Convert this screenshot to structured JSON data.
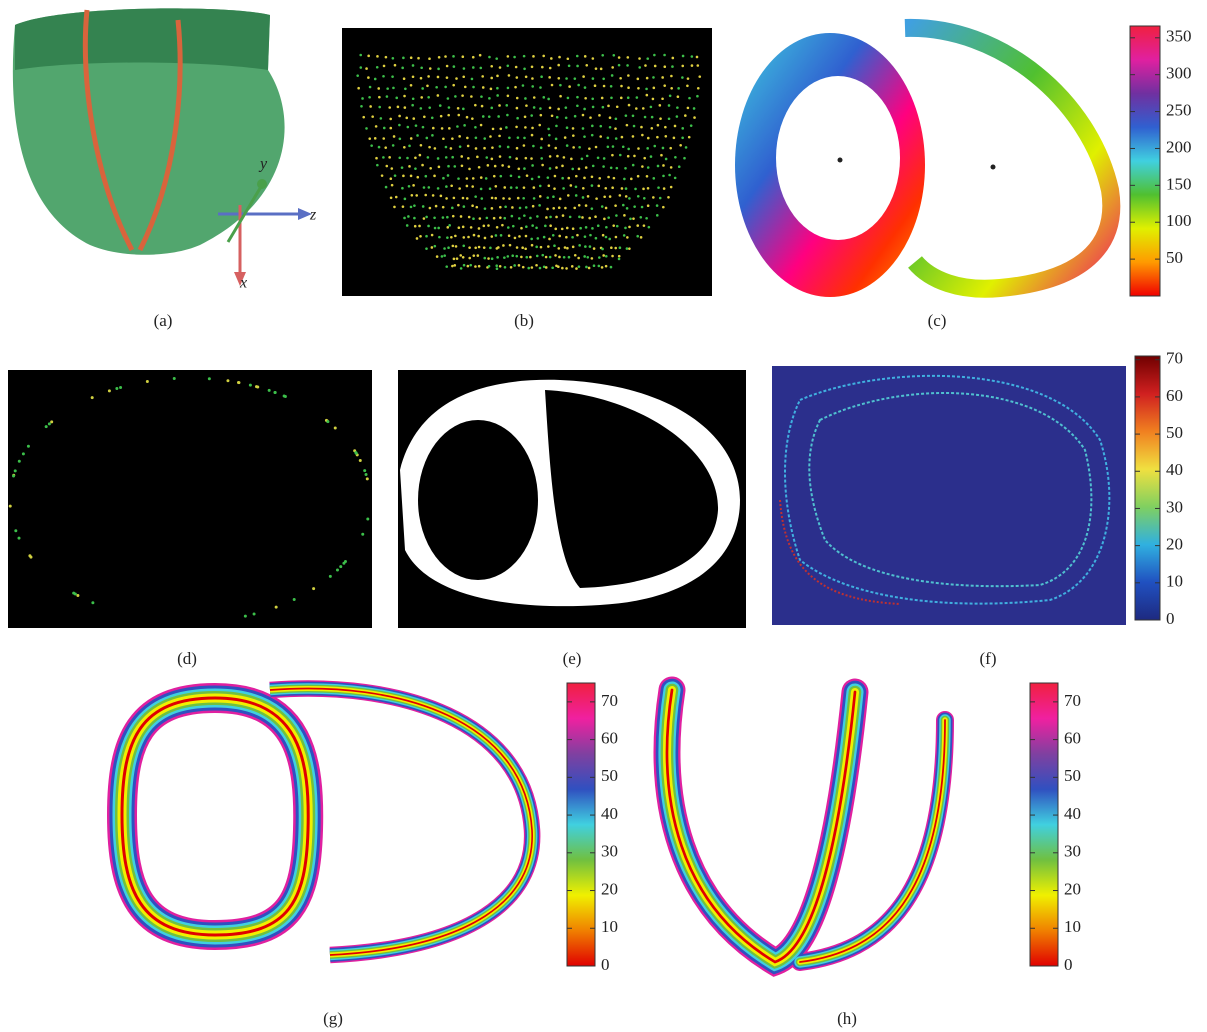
{
  "panels": [
    {
      "label": "(a)",
      "axes": {
        "x": "x",
        "y": "y",
        "z": "z"
      }
    },
    {
      "label": "(b)"
    },
    {
      "label": "(c)",
      "colorbar": {
        "lim": [
          0,
          366
        ],
        "ticks": [
          50,
          100,
          150,
          200,
          250,
          300,
          350
        ],
        "colormap": [
          "#f00000",
          "#ff9a00",
          "#e0f000",
          "#50c030",
          "#40d0e0",
          "#3060d0",
          "#7030a0",
          "#e020a0",
          "#f02040"
        ]
      }
    },
    {
      "label": "(d)"
    },
    {
      "label": "(e)"
    },
    {
      "label": "(f)",
      "colorbar": {
        "lim": [
          0,
          71
        ],
        "ticks": [
          0,
          10,
          20,
          30,
          40,
          50,
          60,
          70
        ],
        "colormap": [
          "#1e2a80",
          "#2050c0",
          "#30b0e0",
          "#80d060",
          "#f0e040",
          "#f08020",
          "#d02020",
          "#700000"
        ]
      }
    },
    {
      "label": "(g)",
      "colorbar": {
        "lim": [
          0,
          75
        ],
        "ticks": [
          0,
          10,
          20,
          30,
          40,
          50,
          60,
          70
        ],
        "colormap": [
          "#e00000",
          "#f08000",
          "#f0f000",
          "#70c040",
          "#40d0e0",
          "#3050c0",
          "#8040a0",
          "#f020a0",
          "#f02040"
        ]
      }
    },
    {
      "label": "(h)",
      "colorbar": {
        "lim": [
          0,
          75
        ],
        "ticks": [
          0,
          10,
          20,
          30,
          40,
          50,
          60,
          70
        ],
        "colormap": [
          "#e00000",
          "#f08000",
          "#f0f000",
          "#70c040",
          "#40d0e0",
          "#3050c0",
          "#8040a0",
          "#f020a0",
          "#f02040"
        ]
      }
    }
  ]
}
